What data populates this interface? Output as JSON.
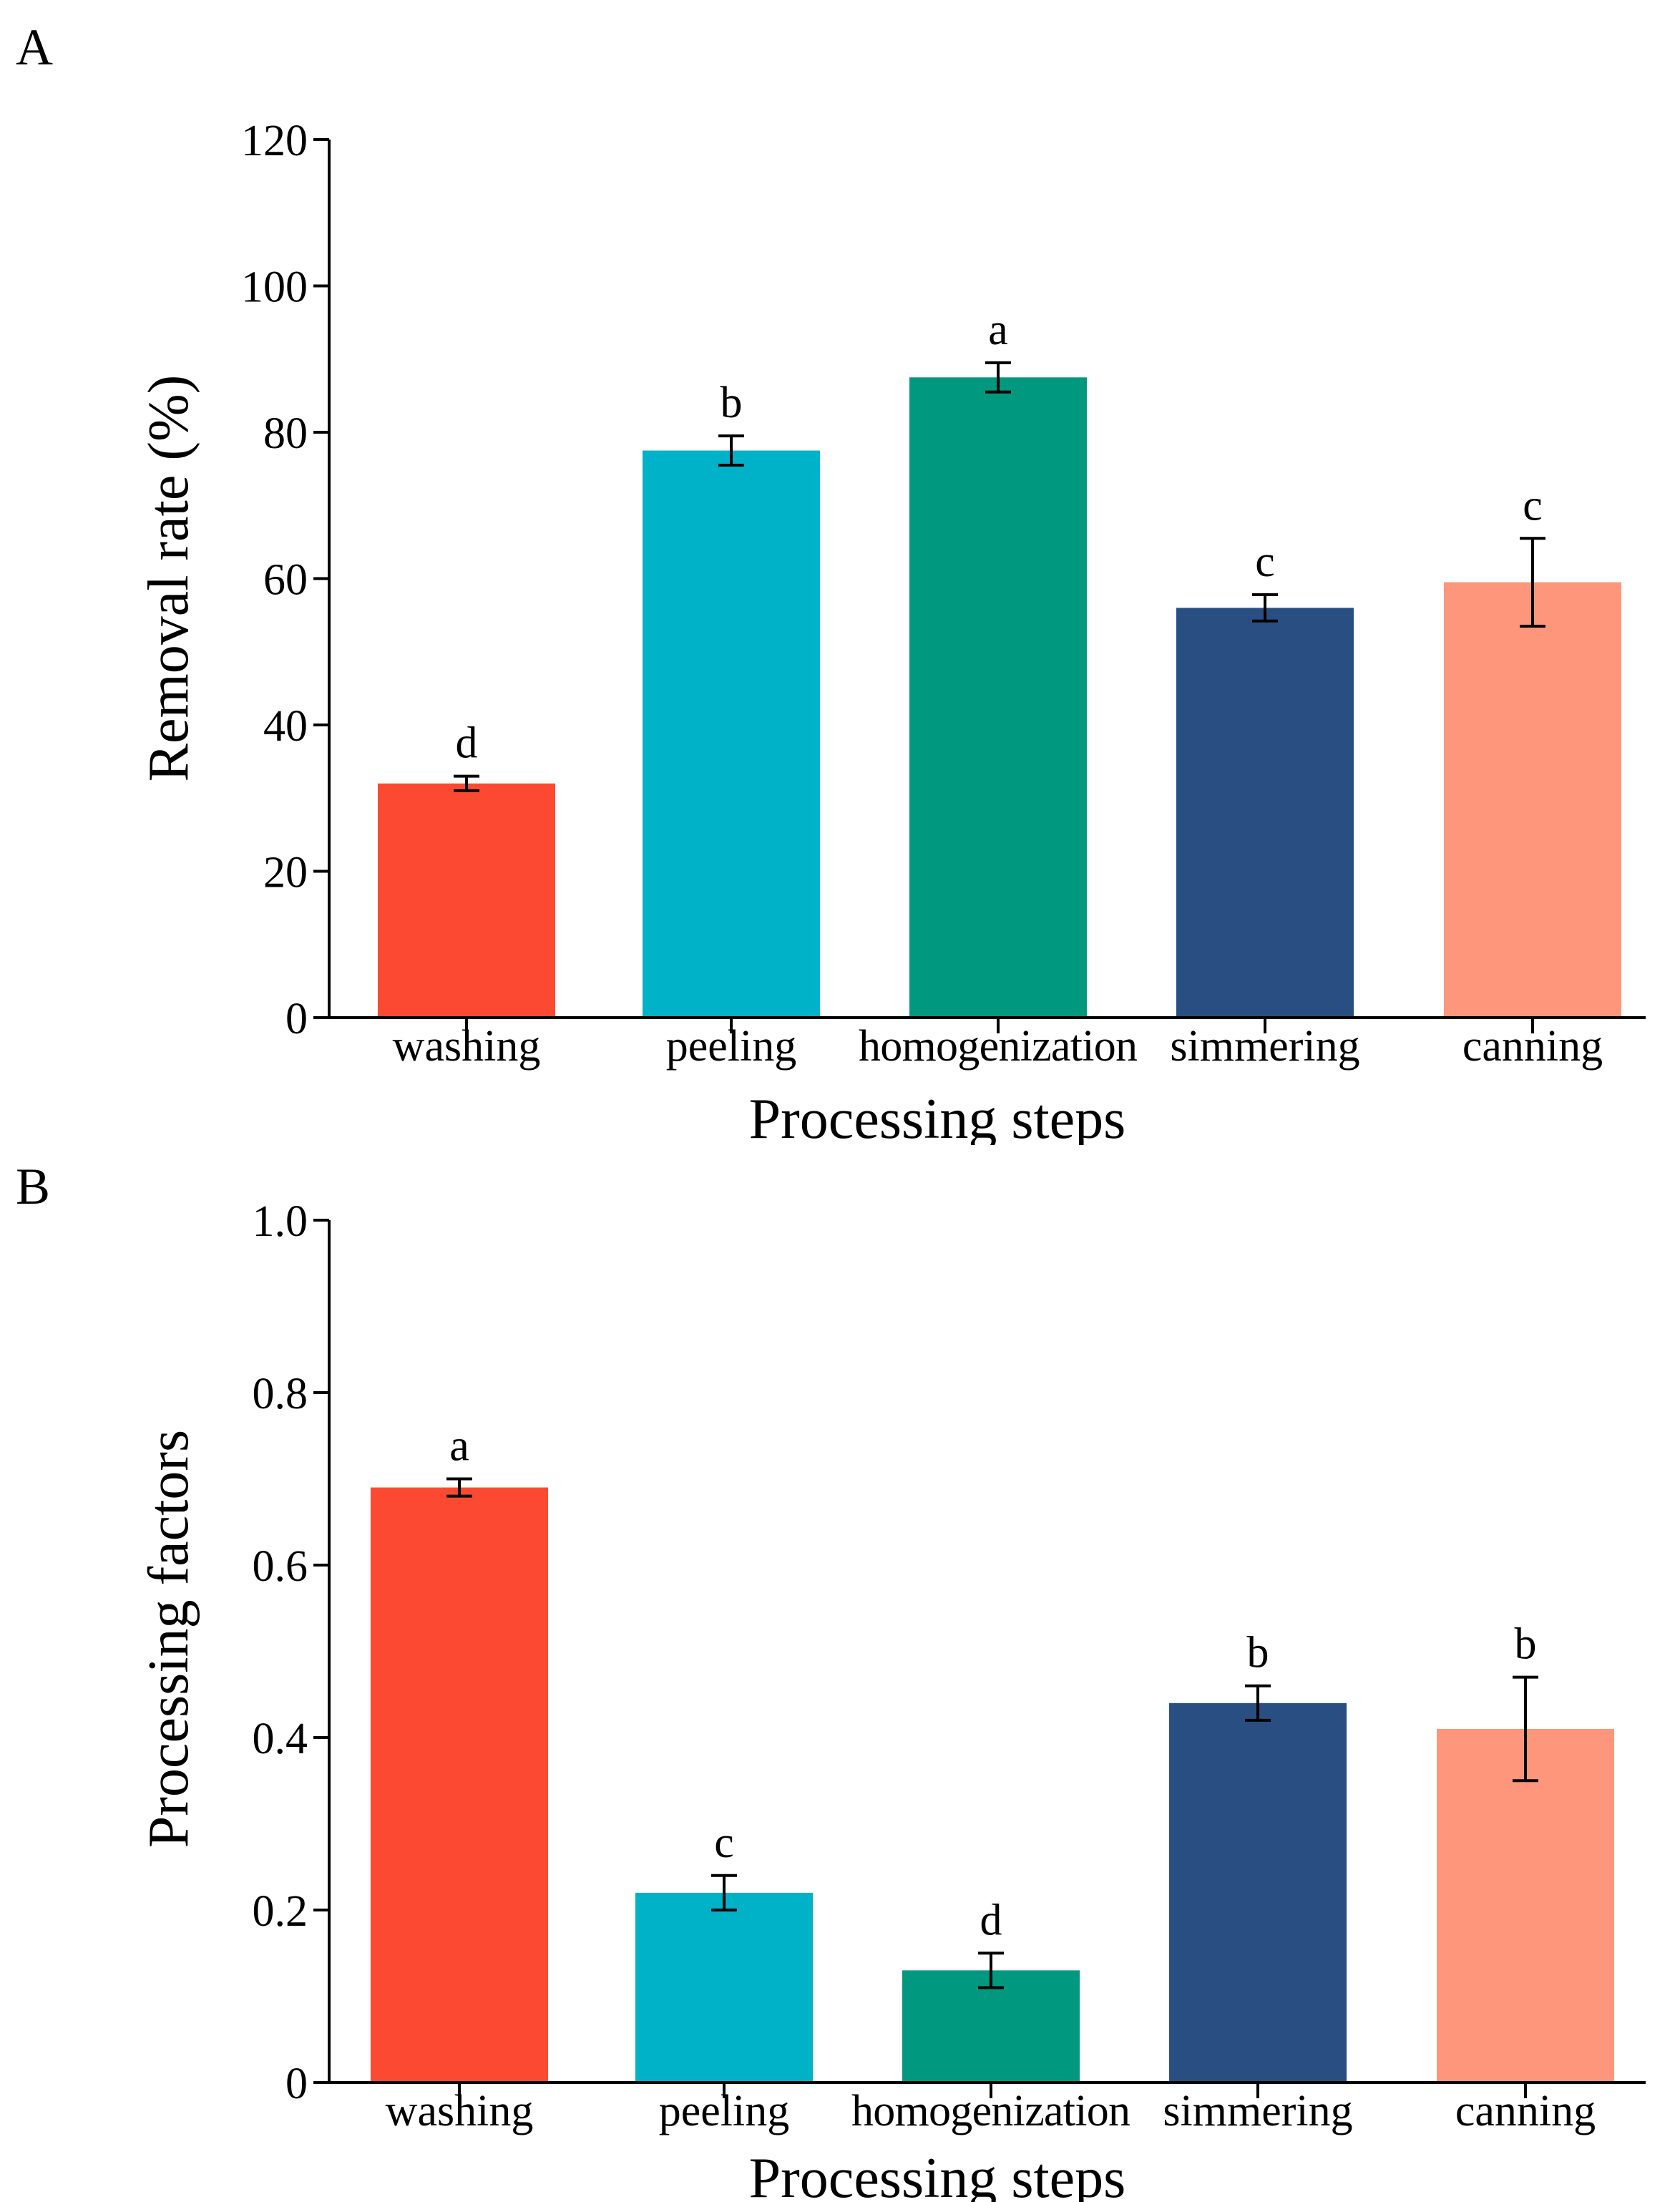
{
  "chart_data": [
    {
      "panel": "A",
      "type": "bar",
      "title": "",
      "xlabel": "Processing steps",
      "ylabel": "Removal rate (%)",
      "ylim": [
        0,
        120
      ],
      "yticks": [
        "0",
        "20",
        "40",
        "60",
        "80",
        "100",
        "120"
      ],
      "categories": [
        "washing",
        "peeling",
        "homogenization",
        "simmering",
        "canning"
      ],
      "values": [
        32,
        77.5,
        87.5,
        56,
        59.5
      ],
      "errors": [
        1,
        2,
        2,
        1.8,
        6
      ],
      "letters": [
        "d",
        "b",
        "a",
        "c",
        "c"
      ],
      "colors": [
        "#fc4a32",
        "#00b2c8",
        "#00997f",
        "#294f82",
        "#fd967b"
      ]
    },
    {
      "panel": "B",
      "type": "bar",
      "title": "",
      "xlabel": "Processing steps",
      "ylabel": "Processing factors",
      "ylim": [
        0,
        1.0
      ],
      "yticks": [
        "0",
        "0.2",
        "0.4",
        "0.6",
        "0.8",
        "1.0"
      ],
      "categories": [
        "washing",
        "peeling",
        "homogenization",
        "simmering",
        "canning"
      ],
      "values": [
        0.69,
        0.22,
        0.13,
        0.44,
        0.41
      ],
      "errors": [
        0.01,
        0.02,
        0.02,
        0.02,
        0.06
      ],
      "letters": [
        "a",
        "c",
        "d",
        "b",
        "b"
      ],
      "colors": [
        "#fc4a32",
        "#00b2c8",
        "#00997f",
        "#294f82",
        "#fd967b"
      ]
    }
  ]
}
